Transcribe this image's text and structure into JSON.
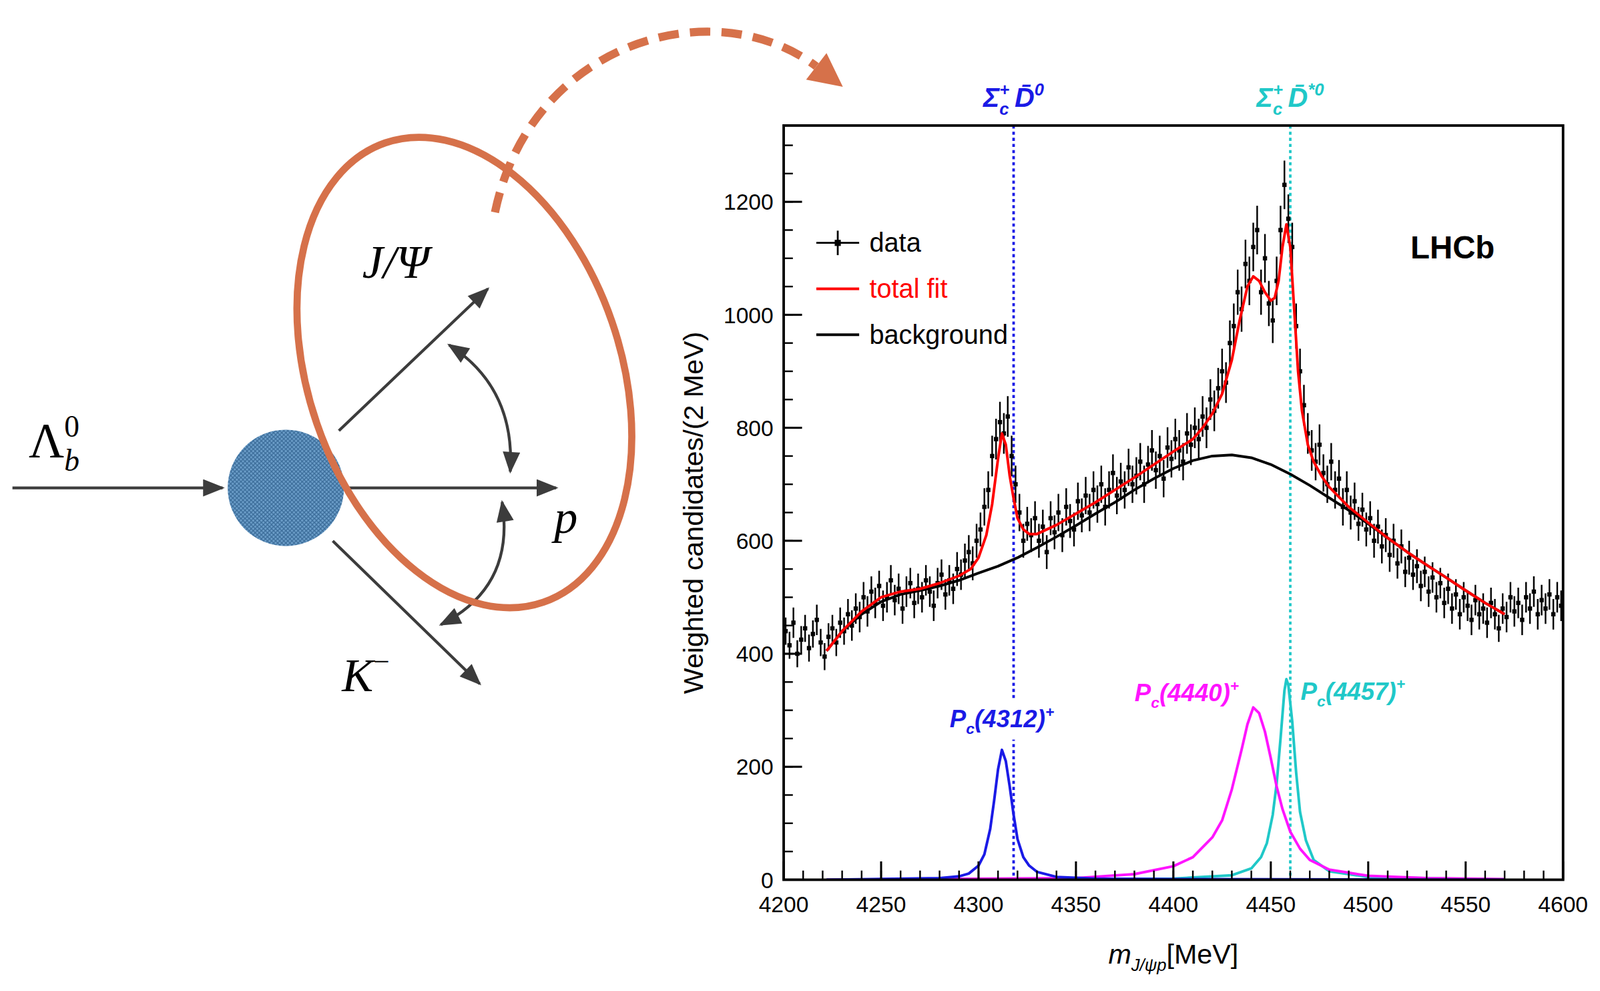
{
  "diagram": {
    "particles": [
      {
        "label": "Λ",
        "sub": "b",
        "sup": "0"
      },
      {
        "label": "J/Ψ"
      },
      {
        "label": "p"
      },
      {
        "label": "K",
        "sup": "−"
      }
    ]
  },
  "chart_data": {
    "type": "scatter",
    "x_label": {
      "base": "m",
      "sub": "J/ψp",
      "text": " [MeV]"
    },
    "y_label": "Weighted candidates/(2 MeV)",
    "xlim": [
      4200,
      4600
    ],
    "ylim": [
      0,
      1335
    ],
    "xticks": [
      4200,
      4250,
      4300,
      4350,
      4400,
      4450,
      4500,
      4550,
      4600
    ],
    "yticks": [
      0,
      200,
      400,
      600,
      800,
      1000,
      1200
    ],
    "legend": "upper left",
    "annotations": [
      {
        "text": "LHCb"
      }
    ],
    "thresholds": [
      {
        "x": 4318,
        "color": "#1a1ae6",
        "line_style": "dotted",
        "label": {
          "base": "Σ",
          "sub": "c",
          "sup": "+",
          "base2": "D̄",
          "sup2": "0"
        }
      },
      {
        "x": 4460,
        "color": "#20c8c8",
        "line_style": "dotted",
        "label": {
          "base": "Σ",
          "sub": "c",
          "sup": "+",
          "base2": "D̄",
          "sup2": "*0"
        }
      }
    ],
    "series": [
      {
        "name": "data",
        "type": "scatter",
        "color": "#000000",
        "marker": "square",
        "x": [
          4201,
          4203,
          4205,
          4207,
          4209,
          4211,
          4213,
          4215,
          4217,
          4219,
          4221,
          4223,
          4225,
          4227,
          4229,
          4231,
          4233,
          4235,
          4237,
          4239,
          4241,
          4243,
          4245,
          4247,
          4249,
          4251,
          4253,
          4255,
          4257,
          4259,
          4261,
          4263,
          4265,
          4267,
          4269,
          4271,
          4273,
          4275,
          4277,
          4279,
          4281,
          4283,
          4285,
          4287,
          4289,
          4291,
          4293,
          4295,
          4297,
          4299,
          4301,
          4303,
          4305,
          4307,
          4309,
          4311,
          4313,
          4315,
          4317,
          4319,
          4321,
          4323,
          4325,
          4327,
          4329,
          4331,
          4333,
          4335,
          4337,
          4339,
          4341,
          4343,
          4345,
          4347,
          4349,
          4351,
          4353,
          4355,
          4357,
          4359,
          4361,
          4363,
          4365,
          4367,
          4369,
          4371,
          4373,
          4375,
          4377,
          4379,
          4381,
          4383,
          4385,
          4387,
          4389,
          4391,
          4393,
          4395,
          4397,
          4399,
          4401,
          4403,
          4405,
          4407,
          4409,
          4411,
          4413,
          4415,
          4417,
          4419,
          4421,
          4423,
          4425,
          4427,
          4429,
          4431,
          4433,
          4435,
          4437,
          4439,
          4441,
          4443,
          4445,
          4447,
          4449,
          4451,
          4453,
          4455,
          4457,
          4459,
          4461,
          4463,
          4465,
          4467,
          4469,
          4471,
          4473,
          4475,
          4477,
          4479,
          4481,
          4483,
          4485,
          4487,
          4489,
          4491,
          4493,
          4495,
          4497,
          4499,
          4501,
          4503,
          4505,
          4507,
          4509,
          4511,
          4513,
          4515,
          4517,
          4519,
          4521,
          4523,
          4525,
          4527,
          4529,
          4531,
          4533,
          4535,
          4537,
          4539,
          4541,
          4543,
          4545,
          4547,
          4549,
          4551,
          4553,
          4555,
          4557,
          4559,
          4561,
          4563,
          4565,
          4567,
          4569,
          4571,
          4573,
          4575,
          4577,
          4579,
          4581,
          4583,
          4585,
          4587,
          4589,
          4591,
          4593,
          4595,
          4597,
          4599
        ],
        "values": [
          440,
          415,
          455,
          400,
          425,
          445,
          410,
          435,
          460,
          420,
          395,
          430,
          445,
          420,
          455,
          440,
          470,
          450,
          480,
          465,
          500,
          475,
          510,
          490,
          520,
          485,
          500,
          530,
          495,
          515,
          480,
          510,
          525,
          490,
          515,
          500,
          530,
          510,
          485,
          525,
          540,
          505,
          530,
          515,
          550,
          540,
          565,
          580,
          560,
          600,
          620,
          660,
          690,
          750,
          780,
          810,
          790,
          820,
          750,
          700,
          650,
          600,
          630,
          610,
          640,
          600,
          625,
          580,
          640,
          615,
          650,
          610,
          660,
          635,
          620,
          670,
          645,
          680,
          650,
          690,
          665,
          700,
          660,
          690,
          720,
          680,
          705,
          690,
          730,
          700,
          715,
          740,
          700,
          735,
          760,
          725,
          750,
          710,
          765,
          745,
          780,
          760,
          740,
          790,
          770,
          800,
          780,
          820,
          800,
          850,
          830,
          870,
          900,
          880,
          950,
          980,
          1040,
          1010,
          1090,
          1060,
          1120,
          1150,
          1040,
          1100,
          1020,
          990,
          1060,
          1150,
          1230,
          1170,
          1120,
          980,
          900,
          840,
          790,
          760,
          740,
          770,
          720,
          700,
          740,
          690,
          710,
          660,
          690,
          650,
          670,
          630,
          655,
          620,
          640,
          600,
          625,
          590,
          610,
          575,
          600,
          560,
          590,
          545,
          570,
          540,
          555,
          520,
          545,
          510,
          535,
          500,
          525,
          490,
          515,
          480,
          505,
          470,
          500,
          485,
          460,
          495,
          470,
          480,
          455,
          490,
          470,
          445,
          480,
          465,
          500,
          475,
          490,
          460,
          500,
          480,
          510,
          470,
          495,
          480,
          505,
          470,
          500,
          485
        ],
        "errors": [
          24,
          24,
          27,
          24,
          24,
          24,
          24,
          24,
          27,
          24,
          24,
          24,
          24,
          24,
          27,
          24,
          27,
          27,
          27,
          27,
          27,
          27,
          27,
          27,
          27,
          27,
          27,
          27,
          27,
          27,
          27,
          27,
          27,
          27,
          27,
          27,
          27,
          27,
          27,
          27,
          27,
          27,
          27,
          27,
          30,
          27,
          30,
          30,
          30,
          30,
          30,
          33,
          33,
          36,
          36,
          36,
          36,
          36,
          36,
          33,
          33,
          30,
          30,
          30,
          30,
          30,
          30,
          30,
          30,
          30,
          33,
          30,
          33,
          30,
          30,
          33,
          30,
          33,
          33,
          33,
          33,
          33,
          33,
          33,
          33,
          33,
          33,
          33,
          33,
          33,
          33,
          33,
          33,
          33,
          36,
          33,
          36,
          33,
          36,
          33,
          36,
          36,
          33,
          36,
          36,
          36,
          36,
          36,
          36,
          36,
          36,
          36,
          40,
          36,
          40,
          40,
          40,
          40,
          43,
          43,
          43,
          43,
          40,
          43,
          40,
          40,
          43,
          43,
          43,
          43,
          43,
          40,
          40,
          36,
          36,
          36,
          33,
          36,
          33,
          33,
          33,
          33,
          33,
          33,
          33,
          30,
          33,
          30,
          30,
          30,
          30,
          30,
          30,
          30,
          30,
          30,
          30,
          27,
          30,
          27,
          30,
          27,
          30,
          27,
          27,
          27,
          27,
          27,
          27,
          27,
          27,
          27,
          27,
          27,
          27,
          27,
          27,
          27,
          27,
          27,
          27,
          27,
          27,
          24,
          27,
          27,
          27,
          27,
          27,
          27,
          27,
          27,
          27,
          27,
          27,
          27,
          27,
          27,
          27,
          27
        ]
      },
      {
        "name": "total fit",
        "type": "line",
        "color": "#ff0000",
        "x": [
          4222,
          4230,
          4240,
          4250,
          4260,
          4270,
          4280,
          4290,
          4296,
          4300,
          4304,
          4307,
          4310,
          4312,
          4314,
          4316,
          4318,
          4320,
          4323,
          4326,
          4330,
          4340,
          4350,
          4360,
          4370,
          4380,
          4390,
          4400,
          4410,
          4415,
          4420,
          4425,
          4430,
          4434,
          4438,
          4441,
          4444,
          4447,
          4450,
          4452,
          4454,
          4456,
          4458,
          4460,
          4462,
          4464,
          4466,
          4469,
          4472,
          4476,
          4480,
          4490,
          4500,
          4510,
          4520,
          4530,
          4540,
          4550,
          4560,
          4570
        ],
        "values": [
          405,
          440,
          475,
          500,
          510,
          515,
          525,
          538,
          550,
          570,
          610,
          665,
          745,
          790,
          770,
          715,
          675,
          640,
          620,
          612,
          612,
          628,
          648,
          668,
          690,
          712,
          735,
          758,
          780,
          800,
          825,
          860,
          920,
          990,
          1050,
          1068,
          1060,
          1040,
          1025,
          1030,
          1060,
          1120,
          1160,
          1120,
          1010,
          900,
          830,
          770,
          740,
          715,
          695,
          660,
          632,
          605,
          580,
          557,
          535,
          512,
          490,
          470
        ]
      },
      {
        "name": "background",
        "type": "line",
        "color": "#000000",
        "x": [
          4222,
          4230,
          4240,
          4250,
          4260,
          4270,
          4280,
          4290,
          4300,
          4310,
          4320,
          4330,
          4340,
          4350,
          4360,
          4370,
          4380,
          4390,
          4400,
          4410,
          4420,
          4430,
          4440,
          4450,
          4460,
          4470,
          4480,
          4490,
          4500,
          4510,
          4520,
          4530,
          4540,
          4550,
          4560,
          4570
        ],
        "values": [
          405,
          440,
          470,
          492,
          505,
          512,
          520,
          530,
          543,
          555,
          570,
          588,
          607,
          627,
          648,
          668,
          690,
          710,
          728,
          742,
          750,
          752,
          747,
          735,
          718,
          698,
          676,
          654,
          630,
          605,
          580,
          557,
          535,
          512,
          490,
          470
        ]
      },
      {
        "type": "line",
        "color": "#1a1ae6",
        "label": {
          "base": "P",
          "sub": "c",
          "text": "(4312)",
          "sup": "+"
        },
        "x": [
          4222,
          4280,
          4290,
          4295,
          4300,
          4303,
          4306,
          4308,
          4310,
          4312,
          4314,
          4316,
          4318,
          4320,
          4323,
          4326,
          4330,
          4340,
          4360,
          4400,
          4570
        ],
        "values": [
          0,
          3,
          6,
          11,
          25,
          45,
          90,
          140,
          195,
          230,
          210,
          165,
          115,
          72,
          40,
          25,
          14,
          5,
          2,
          1,
          0
        ]
      },
      {
        "type": "line",
        "color": "#ff14ff",
        "label": {
          "base": "P",
          "sub": "c",
          "text": "(4440)",
          "sup": "+"
        },
        "x": [
          4222,
          4350,
          4380,
          4400,
          4410,
          4420,
          4425,
          4430,
          4435,
          4438,
          4441,
          4444,
          4447,
          4450,
          4453,
          4456,
          4460,
          4465,
          4470,
          4480,
          4500,
          4530,
          4570
        ],
        "values": [
          0,
          3,
          10,
          24,
          40,
          75,
          105,
          160,
          230,
          275,
          305,
          295,
          262,
          215,
          165,
          125,
          85,
          55,
          35,
          18,
          7,
          3,
          1
        ]
      },
      {
        "type": "line",
        "color": "#20c8c8",
        "label": {
          "base": "P",
          "sub": "c",
          "text": "(4457)",
          "sup": "+"
        },
        "x": [
          4222,
          4400,
          4430,
          4440,
          4445,
          4448,
          4451,
          4453,
          4455,
          4457,
          4458,
          4459,
          4461,
          4463,
          4465,
          4468,
          4472,
          4480,
          4500,
          4570
        ],
        "values": [
          0,
          2,
          8,
          20,
          40,
          65,
          115,
          170,
          250,
          335,
          355,
          345,
          280,
          190,
          120,
          70,
          35,
          15,
          5,
          0
        ]
      }
    ]
  }
}
